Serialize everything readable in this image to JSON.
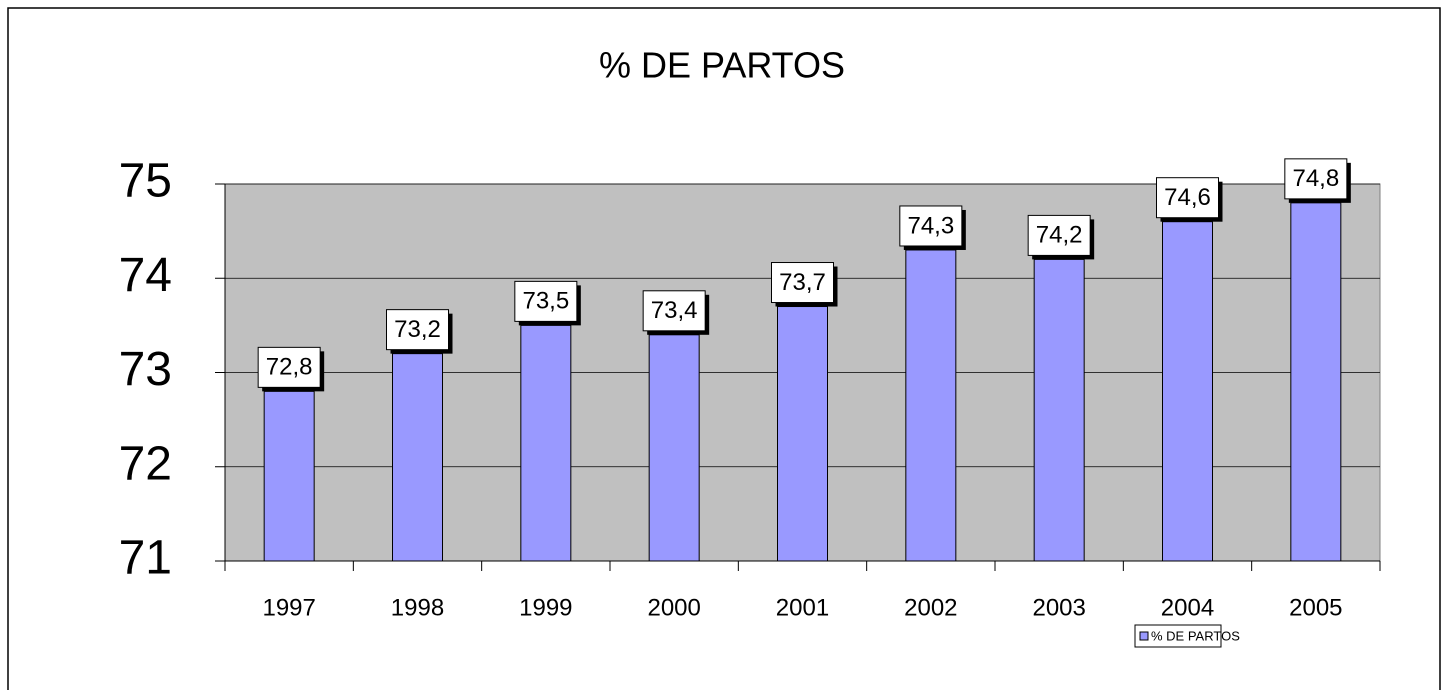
{
  "chart_data": {
    "type": "bar",
    "title": "% DE PARTOS",
    "categories": [
      "1997",
      "1998",
      "1999",
      "2000",
      "2001",
      "2002",
      "2003",
      "2004",
      "2005"
    ],
    "series": [
      {
        "name": "% DE PARTOS",
        "color": "#9999ff",
        "values": [
          72.8,
          73.2,
          73.5,
          73.4,
          73.7,
          74.3,
          74.2,
          74.6,
          74.8
        ],
        "value_labels": [
          "72,8",
          "73,2",
          "73,5",
          "73,4",
          "73,7",
          "74,3",
          "74,2",
          "74,6",
          "74,8"
        ]
      }
    ],
    "ylim": [
      71,
      75
    ],
    "yticks": [
      71,
      72,
      73,
      74,
      75
    ],
    "grid": true,
    "legend": "bottom-right"
  }
}
